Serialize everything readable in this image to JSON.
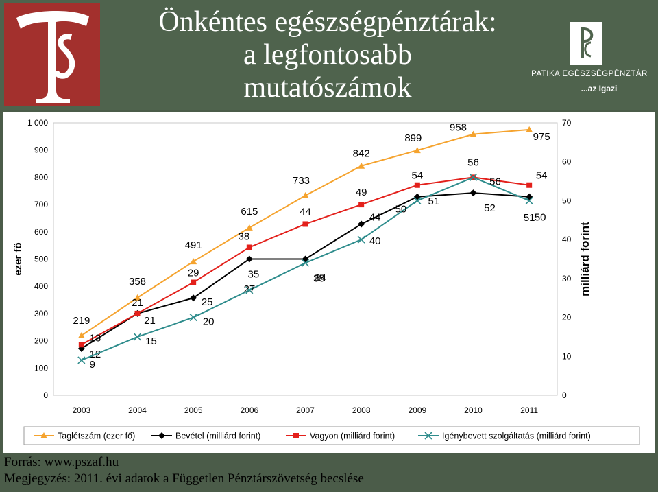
{
  "title_lines": [
    "Önkéntes egészségpénztárak:",
    "a legfontosabb",
    "mutatószámok"
  ],
  "brand": {
    "name": "PATIKA EGÉSZSÉGPÉNZTÁR",
    "slogan": "...az Igazi"
  },
  "footer": {
    "source": "Forrás: www.pszaf.hu",
    "note": "Megjegyzés: 2011. évi adatok a Független Pénztárszövetség becslése"
  },
  "colors": {
    "background": "#4b5c49",
    "panel": "#ffffff",
    "logo_red": "#a3302d"
  },
  "chart_data": {
    "type": "line",
    "x": [
      "2003",
      "2004",
      "2005",
      "2006",
      "2007",
      "2008",
      "2009",
      "2010",
      "2011"
    ],
    "ylabel": "ezer fő",
    "y2label": "milliárd forint",
    "ylim": [
      0,
      1000
    ],
    "y_ticks": [
      "0",
      "100",
      "200",
      "300",
      "400",
      "500",
      "600",
      "700",
      "800",
      "900",
      "1 000"
    ],
    "y2lim": [
      0,
      70
    ],
    "y2_ticks": [
      "0",
      "10",
      "20",
      "30",
      "40",
      "50",
      "60",
      "70"
    ],
    "legend_position": "bottom",
    "grid": false,
    "series": [
      {
        "name": "Taglétszám (ezer fő)",
        "axis": "left",
        "color": "#f5a32e",
        "marker": "triangle",
        "values": [
          219,
          358,
          491,
          615,
          733,
          842,
          899,
          958,
          975
        ],
        "labels": [
          "219",
          "358",
          "491",
          "615",
          "733",
          "842",
          "899",
          "958",
          "975"
        ]
      },
      {
        "name": "Bevétel (milliárd forint)",
        "axis": "right",
        "color": "#000000",
        "marker": "diamond",
        "values": [
          12,
          21,
          25,
          35,
          35,
          44,
          51,
          52,
          51
        ],
        "labels": [
          "12",
          "21",
          "25",
          "35",
          "35",
          "44",
          "51",
          "52",
          "51"
        ]
      },
      {
        "name": "Vagyon (milliárd forint)",
        "axis": "right",
        "color": "#e3201b",
        "marker": "square",
        "values": [
          13,
          21,
          29,
          38,
          44,
          49,
          54,
          56,
          54
        ],
        "labels": [
          "13",
          "21",
          "29",
          "38",
          "44",
          "49",
          "54",
          "56",
          "54"
        ]
      },
      {
        "name": "Igénybevett szolgáltatás (milliárd forint)",
        "axis": "right",
        "color": "#2e8c8c",
        "marker": "x",
        "values": [
          9,
          15,
          20,
          27,
          34,
          40,
          50,
          56,
          50
        ],
        "labels": [
          "9",
          "15",
          "20",
          "27",
          "34",
          "40",
          "50",
          "56",
          "50"
        ]
      }
    ]
  }
}
